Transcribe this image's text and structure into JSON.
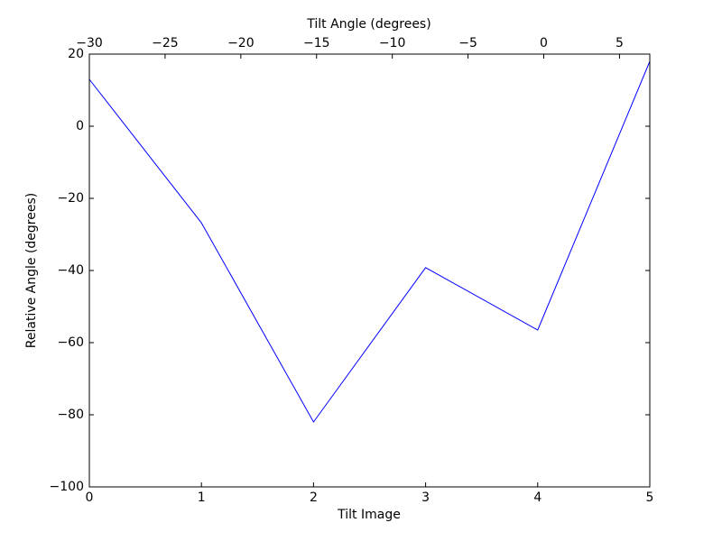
{
  "chart_data": {
    "type": "line",
    "xlabel": "Tilt Image",
    "ylabel": "Relative Angle (degrees)",
    "x2label": "Tilt Angle (degrees)",
    "x": [
      0,
      1,
      2,
      3,
      4,
      5
    ],
    "series": [
      {
        "color": "#0000ff",
        "values": [
          13,
          -26.8,
          -82,
          -39.2,
          -56.5,
          18
        ]
      }
    ],
    "xlim": [
      0,
      5
    ],
    "xticks": [
      0,
      1,
      2,
      3,
      4,
      5
    ],
    "ylim": [
      -100,
      20
    ],
    "yticks": [
      {
        "value": -100,
        "label": "−100"
      },
      {
        "value": -80,
        "label": "−80"
      },
      {
        "value": -60,
        "label": "−60"
      },
      {
        "value": -40,
        "label": "−40"
      },
      {
        "value": -20,
        "label": "−20"
      },
      0,
      20
    ],
    "x2lim": [
      -30,
      7
    ],
    "x2ticks": [
      {
        "value": -30,
        "label": "−30"
      },
      {
        "value": -25,
        "label": "−25"
      },
      {
        "value": -20,
        "label": "−20"
      },
      {
        "value": -15,
        "label": "−15"
      },
      {
        "value": -10,
        "label": "−10"
      },
      {
        "value": -5,
        "label": "−5"
      },
      0,
      5
    ]
  }
}
